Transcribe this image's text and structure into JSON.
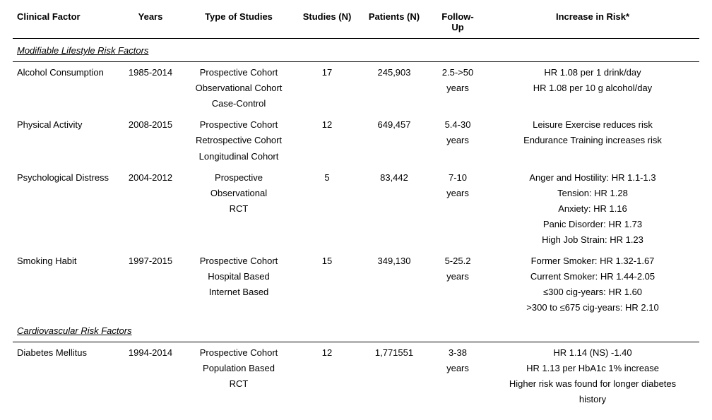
{
  "headers": {
    "clinical_factor": "Clinical Factor",
    "years": "Years",
    "type_of_studies": "Type of Studies",
    "studies_n": "Studies (N)",
    "patients_n": "Patients (N)",
    "follow_up_l1": "Follow-",
    "follow_up_l2": "Up",
    "increase_in_risk": "Increase in Risk*"
  },
  "sections": {
    "modifiable": "Modifiable Lifestyle Risk Factors",
    "cardio": "Cardiovascular Risk Factors"
  },
  "rows": {
    "alcohol": {
      "factor": "Alcohol Consumption",
      "years": "1985-2014",
      "types": [
        "Prospective Cohort",
        "Observational Cohort",
        "Case-Control"
      ],
      "studies": "17",
      "patients": "245,903",
      "followup": [
        "2.5->50",
        "years"
      ],
      "risk": [
        "HR 1.08 per 1 drink/day",
        "HR 1.08 per 10 g alcohol/day"
      ]
    },
    "physical": {
      "factor": "Physical Activity",
      "years": "2008-2015",
      "types": [
        "Prospective Cohort",
        "Retrospective Cohort",
        "Longitudinal Cohort"
      ],
      "studies": "12",
      "patients": "649,457",
      "followup": [
        "5.4-30",
        "years"
      ],
      "risk": [
        "Leisure Exercise reduces risk",
        "Endurance Training increases risk"
      ]
    },
    "psych": {
      "factor": "Psychological Distress",
      "years": "2004-2012",
      "types": [
        "Prospective",
        "Observational",
        "RCT"
      ],
      "studies": "5",
      "patients": "83,442",
      "followup": [
        "7-10",
        "years"
      ],
      "risk": [
        "Anger and Hostility: HR 1.1-1.3",
        "Tension: HR 1.28",
        "Anxiety: HR 1.16",
        "Panic Disorder: HR 1.73",
        "High Job Strain: HR 1.23"
      ]
    },
    "smoking": {
      "factor": "Smoking Habit",
      "years": "1997-2015",
      "types": [
        "Prospective Cohort",
        "Hospital Based",
        "Internet Based"
      ],
      "studies": "15",
      "patients": "349,130",
      "followup": [
        "5-25.2",
        "years"
      ],
      "risk": [
        "Former Smoker: HR 1.32-1.67",
        "Current Smoker: HR 1.44-2.05",
        "≤300 cig-years: HR 1.60",
        ">300 to ≤675 cig-years: HR 2.10"
      ]
    },
    "diabetes": {
      "factor": "Diabetes Mellitus",
      "years": "1994-2014",
      "types": [
        "Prospective Cohort",
        "Population Based",
        "RCT"
      ],
      "studies": "12",
      "patients": "1,771551",
      "followup": [
        "3-38",
        "years"
      ],
      "risk": [
        "HR 1.14 (NS) -1.40",
        "HR 1.13 per HbA1c 1% increase",
        "Higher risk was found for longer diabetes",
        "history"
      ]
    }
  }
}
